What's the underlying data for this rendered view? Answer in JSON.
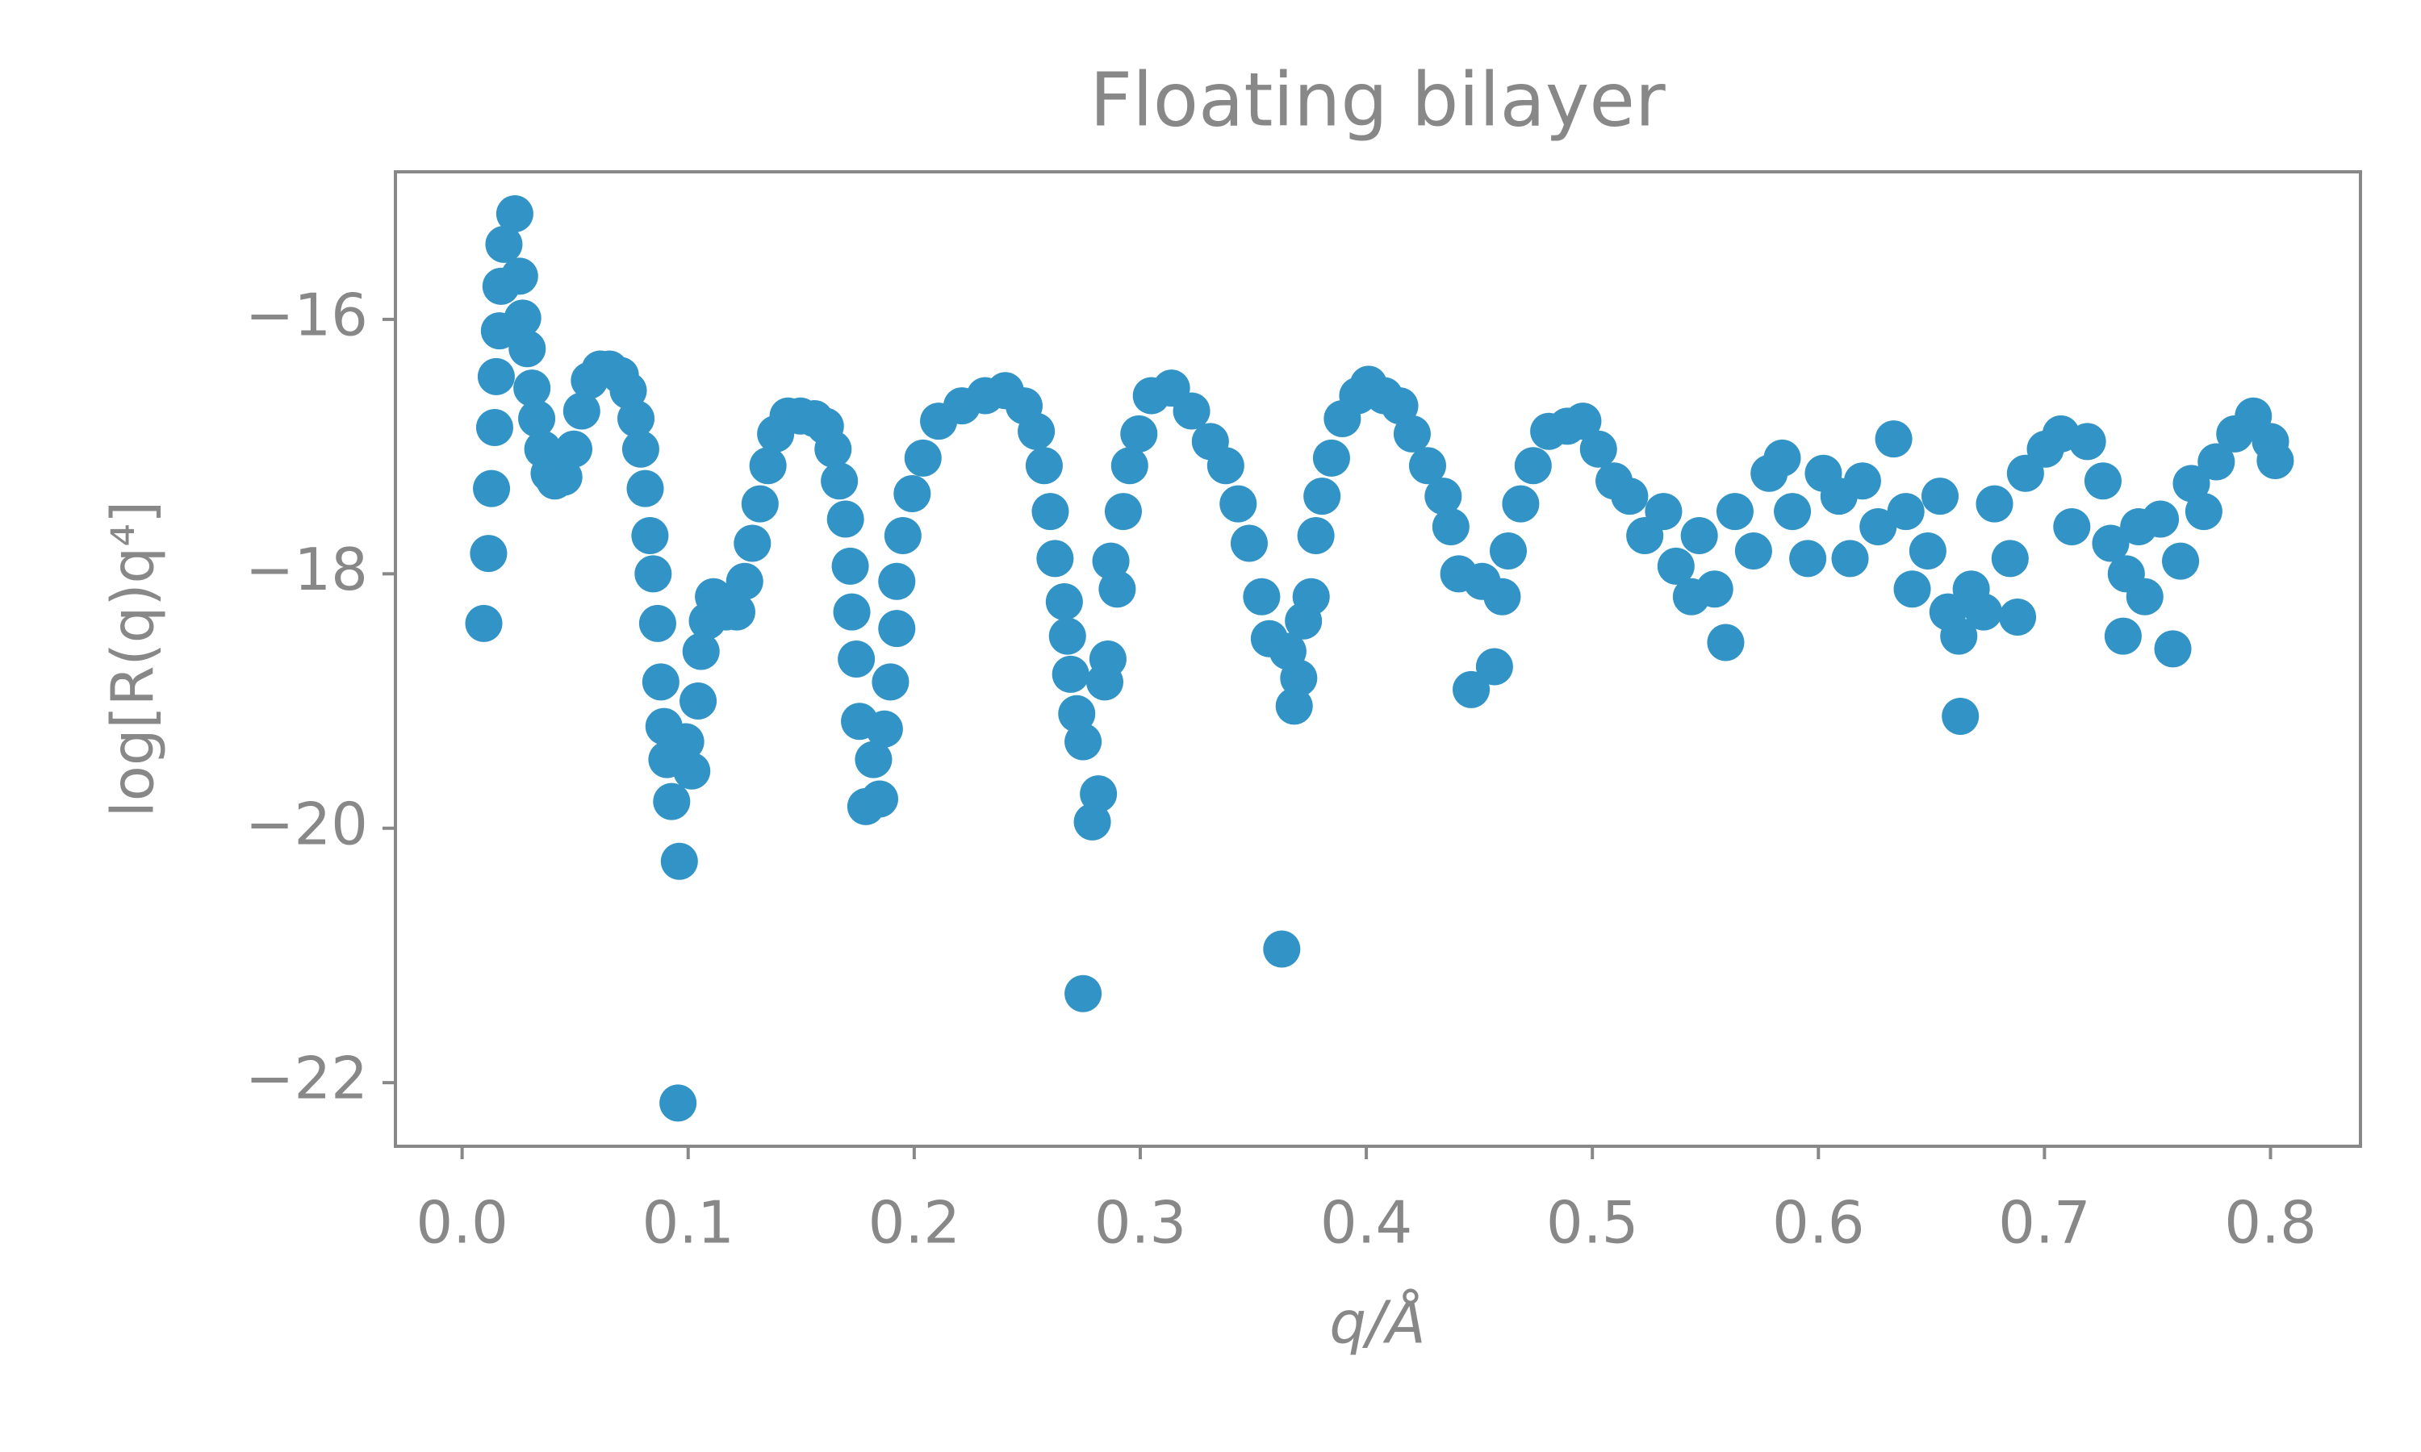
{
  "chart_data": {
    "type": "scatter",
    "title": "Floating bilayer",
    "x_label": "q/Å",
    "y_label": "log[R(q)q⁴]",
    "color": "#3193c6",
    "xlim": [
      -0.0295,
      0.8398
    ],
    "ylim": [
      -22.5,
      -14.84
    ],
    "xticks": [
      {
        "value": 0,
        "label": "0.0"
      },
      0.1,
      0.2,
      0.3,
      0.4,
      0.5,
      0.6,
      0.7,
      0.8
    ],
    "yticks": [
      {
        "value": -22,
        "label": "−22"
      },
      {
        "value": -20,
        "label": "−20"
      },
      {
        "value": -18,
        "label": "−18"
      },
      {
        "value": -16,
        "label": "−16"
      }
    ],
    "grid": false,
    "x": [
      0.0096,
      0.0117,
      0.013,
      0.0144,
      0.0151,
      0.0165,
      0.0172,
      0.0185,
      0.0233,
      0.0254,
      0.0268,
      0.0288,
      0.0309,
      0.033,
      0.0357,
      0.0385,
      0.041,
      0.045,
      0.0494,
      0.0529,
      0.0563,
      0.0611,
      0.0652,
      0.07,
      0.0735,
      0.0769,
      0.079,
      0.081,
      0.0831,
      0.0845,
      0.0865,
      0.0879,
      0.0893,
      0.0906,
      0.0927,
      0.0961,
      0.0955,
      0.0989,
      0.1016,
      0.1044,
      0.1057,
      0.1085,
      0.1112,
      0.1167,
      0.1215,
      0.125,
      0.1284,
      0.1318,
      0.1353,
      0.1387,
      0.1442,
      0.1497,
      0.1559,
      0.1607,
      0.1641,
      0.1669,
      0.1696,
      0.1717,
      0.1724,
      0.1744,
      0.1758,
      0.1786,
      0.182,
      0.1847,
      0.1868,
      0.1895,
      0.1923,
      0.1923,
      0.195,
      0.1991,
      0.2039,
      0.2108,
      0.2211,
      0.2314,
      0.2403,
      0.2486,
      0.254,
      0.2575,
      0.2602,
      0.2623,
      0.2664,
      0.2678,
      0.2692,
      0.2719,
      0.2747,
      0.2747,
      0.2788,
      0.2815,
      0.2843,
      0.2857,
      0.287,
      0.2898,
      0.2925,
      0.2953,
      0.2994,
      0.3049,
      0.3138,
      0.3227,
      0.331,
      0.3378,
      0.3433,
      0.3482,
      0.3537,
      0.3571,
      0.3626,
      0.3653,
      0.3681,
      0.3701,
      0.3722,
      0.3756,
      0.3777,
      0.3804,
      0.3846,
      0.3894,
      0.3962,
      0.401,
      0.4079,
      0.4148,
      0.4203,
      0.4271,
      0.434,
      0.4374,
      0.4409,
      0.4464,
      0.4512,
      0.4567,
      0.4601,
      0.4628,
      0.4683,
      0.4738,
      0.4807,
      0.4889,
      0.4958,
      0.5027,
      0.5096,
      0.5165,
      0.5232,
      0.5315,
      0.537,
      0.5438,
      0.5473,
      0.5541,
      0.559,
      0.5631,
      0.5713,
      0.5782,
      0.584,
      0.5885,
      0.5953,
      0.6022,
      0.6091,
      0.614,
      0.6195,
      0.6264,
      0.6333,
      0.6387,
      0.6415,
      0.6484,
      0.6538,
      0.6573,
      0.6621,
      0.6628,
      0.6676,
      0.6731,
      0.6779,
      0.6848,
      0.6881,
      0.6916,
      0.7004,
      0.7073,
      0.7121,
      0.719,
      0.7259,
      0.7293,
      0.7348,
      0.7362,
      0.7417,
      0.7444,
      0.7513,
      0.7568,
      0.7602,
      0.765,
      0.7705,
      0.776,
      0.7842,
      0.7924,
      0.8,
      0.8021
    ],
    "values": [
      -18.39,
      -17.84,
      -17.33,
      -16.85,
      -16.45,
      -16.09,
      -15.74,
      -15.41,
      -15.17,
      -15.66,
      -15.99,
      -16.23,
      -16.54,
      -16.78,
      -17.02,
      -17.21,
      -17.27,
      -17.24,
      -17.02,
      -16.72,
      -16.48,
      -16.39,
      -16.39,
      -16.44,
      -16.56,
      -16.78,
      -17.02,
      -17.33,
      -17.7,
      -18.0,
      -18.39,
      -18.85,
      -19.2,
      -19.46,
      -19.79,
      -20.26,
      -22.16,
      -19.32,
      -19.55,
      -19.0,
      -18.61,
      -18.37,
      -18.18,
      -18.3,
      -18.3,
      -18.06,
      -17.76,
      -17.45,
      -17.15,
      -16.9,
      -16.76,
      -16.76,
      -16.78,
      -16.84,
      -17.02,
      -17.27,
      -17.57,
      -17.94,
      -18.3,
      -18.67,
      -19.16,
      -19.83,
      -19.46,
      -19.77,
      -19.22,
      -18.85,
      -18.43,
      -18.06,
      -17.7,
      -17.37,
      -17.09,
      -16.8,
      -16.68,
      -16.6,
      -16.56,
      -16.68,
      -16.88,
      -17.15,
      -17.51,
      -17.88,
      -18.22,
      -18.49,
      -18.79,
      -19.1,
      -19.32,
      -21.3,
      -19.95,
      -19.73,
      -18.85,
      -18.67,
      -17.9,
      -18.12,
      -17.51,
      -17.15,
      -16.9,
      -16.6,
      -16.54,
      -16.72,
      -16.96,
      -17.15,
      -17.45,
      -17.76,
      -18.18,
      -18.51,
      -20.95,
      -18.61,
      -19.04,
      -18.82,
      -18.37,
      -18.18,
      -17.7,
      -17.39,
      -17.09,
      -16.78,
      -16.6,
      -16.51,
      -16.6,
      -16.68,
      -16.9,
      -17.15,
      -17.39,
      -17.63,
      -18.0,
      -18.91,
      -18.06,
      -18.73,
      -18.18,
      -17.82,
      -17.45,
      -17.15,
      -16.88,
      -16.84,
      -16.8,
      -17.02,
      -17.27,
      -17.39,
      -17.7,
      -17.51,
      -17.94,
      -18.18,
      -17.7,
      -18.12,
      -18.54,
      -17.51,
      -17.82,
      -17.21,
      -17.09,
      -17.51,
      -17.88,
      -17.21,
      -17.39,
      -17.88,
      -17.27,
      -17.63,
      -16.94,
      -17.51,
      -18.12,
      -17.82,
      -17.39,
      -18.3,
      -18.49,
      -19.12,
      -18.12,
      -18.3,
      -17.45,
      -17.88,
      -18.34,
      -17.21,
      -17.02,
      -16.9,
      -17.63,
      -16.96,
      -17.27,
      -17.76,
      -18.49,
      -18.0,
      -17.63,
      -18.18,
      -17.57,
      -18.59,
      -17.9,
      -17.29,
      -17.51,
      -17.12,
      -16.9,
      -16.76,
      -16.96,
      -17.11
    ]
  }
}
